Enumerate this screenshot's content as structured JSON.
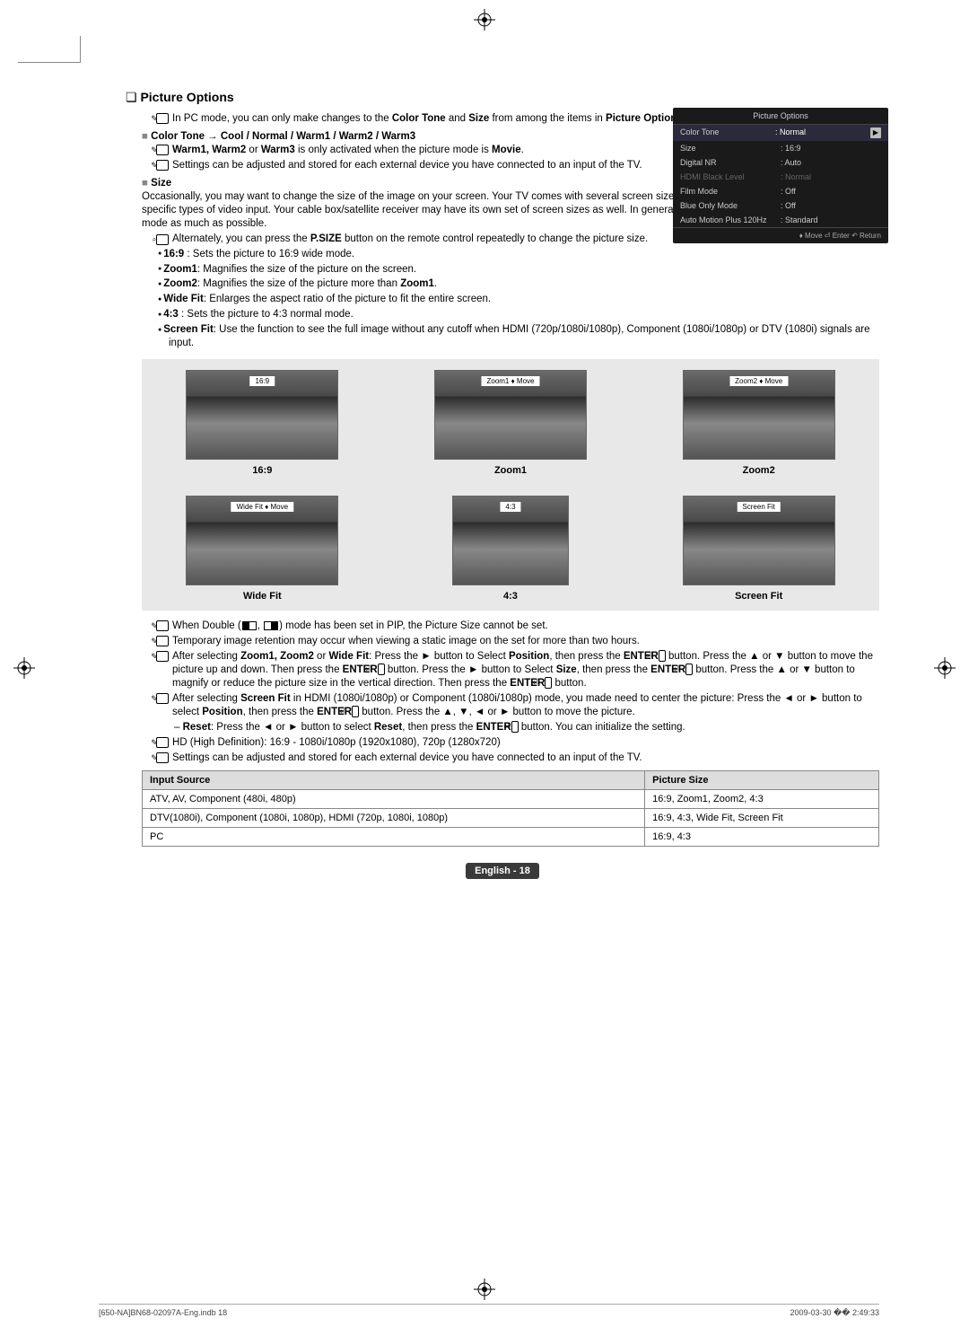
{
  "heading": "Picture Options",
  "intro_note": "In PC mode, you can only make changes to the ",
  "intro_bold1": "Color Tone",
  "intro_mid": " and ",
  "intro_bold2": "Size",
  "intro_end": " from among the items in ",
  "intro_bold3": "Picture Options",
  "intro_period": ".",
  "color_tone_line": "Color Tone → Cool / Normal / Warm1 / Warm2 / Warm3",
  "warm_note_a": "Warm1, Warm2",
  "warm_note_b": " or ",
  "warm_note_c": "Warm3",
  "warm_note_d": " is only activated when the picture mode is ",
  "warm_note_e": "Movie",
  "warm_note_f": ".",
  "settings_note": "Settings can be adjusted and stored for each external device you have connected to an input of the TV.",
  "size_label": "Size",
  "size_intro": "Occasionally, you may want to change the size of the image on your screen. Your TV comes with several screen size options, each designed to work best with specific types of video input. Your cable box/satellite receiver may have its own set of screen sizes as well. In general, though, you should view the TV in 16:9 mode as much as possible.",
  "psize_note_a": "Alternately, you can press the ",
  "psize_note_b": "P.SIZE",
  "psize_note_c": " button on the remote control repeatedly to change the picture size.",
  "bullets": {
    "a1": "16:9",
    "a2": " : Sets the picture to 16:9 wide mode.",
    "b1": "Zoom1",
    "b2": ": Magnifies the size of the picture on the screen.",
    "c1": "Zoom2",
    "c2": ": Magnifies the size of the picture more than ",
    "c3": "Zoom1",
    "c4": ".",
    "d1": "Wide Fit",
    "d2": ": Enlarges the aspect ratio of the picture to fit the entire screen.",
    "e1": "4:3",
    "e2": " : Sets the picture to 4:3 normal mode.",
    "f1": "Screen Fit",
    "f2": ": Use the function to see the full image without any cutoff when HDMI (720p/1080i/1080p), Component (1080i/1080p) or DTV (1080i) signals are input."
  },
  "thumbs": {
    "a": {
      "bar": "16:9",
      "caption": "16:9"
    },
    "b": {
      "bar": "Zoom1 ♦ Move",
      "caption": "Zoom1"
    },
    "c": {
      "bar": "Zoom2 ♦ Move",
      "caption": "Zoom2"
    },
    "d": {
      "bar": "Wide Fit ♦ Move",
      "caption": "Wide Fit"
    },
    "e": {
      "bar": "4:3",
      "caption": "4:3"
    },
    "f": {
      "bar": "Screen Fit",
      "caption": "Screen Fit"
    }
  },
  "after_notes": {
    "n1a": "When Double (",
    "n1b": ", ",
    "n1c": ") mode has been set in PIP, the Picture Size cannot be set.",
    "n2": "Temporary image retention may occur when viewing a static image on the set for more than two hours.",
    "n3a": "After selecting ",
    "n3b": "Zoom1, Zoom2",
    "n3c": " or ",
    "n3d": "Wide Fit",
    "n3e": ": Press the ► button to Select ",
    "n3f": "Position",
    "n3g": ", then press the ",
    "n3h": "ENTER",
    "n3i": " button. Press the ▲ or ▼ button to move the picture up and down. Then press the ",
    "n3j": "ENTER",
    "n3k": " button. Press the ► button to Select ",
    "n3l": "Size",
    "n3m": ", then press the ",
    "n3n": "ENTER",
    "n3o": " button. Press the ▲ or ▼ button to magnify or reduce the picture size in the vertical direction. Then press the ",
    "n3p": "ENTER",
    "n3q": " button.",
    "n4a": "After selecting ",
    "n4b": "Screen Fit",
    "n4c": " in HDMI (1080i/1080p) or Component (1080i/1080p) mode, you made need to center the picture: Press the ◄ or ► button to select ",
    "n4d": "Position",
    "n4e": ", then press the ",
    "n4f": "ENTER",
    "n4g": " button. Press the ▲, ▼, ◄ or ► button to move the picture.",
    "reset_a": "Reset",
    "reset_b": ": Press the ◄ or ► button to select ",
    "reset_c": "Reset",
    "reset_d": ", then press the ",
    "reset_e": "ENTER",
    "reset_f": " button. You can initialize the setting.",
    "n5": "HD (High Definition): 16:9 - 1080i/1080p (1920x1080), 720p (1280x720)",
    "n6": "Settings can be adjusted and stored for each external device you have connected to an input of the TV."
  },
  "table": {
    "h1": "Input Source",
    "h2": "Picture Size",
    "r1c1": "ATV, AV, Component (480i, 480p)",
    "r1c2": "16:9, Zoom1, Zoom2, 4:3",
    "r2c1": "DTV(1080i), Component (1080i, 1080p), HDMI (720p, 1080i, 1080p)",
    "r2c2": "16:9, 4:3, Wide Fit, Screen Fit",
    "r3c1": "PC",
    "r3c2": "16:9, 4:3"
  },
  "osd": {
    "title": "Picture Options",
    "rows": [
      {
        "label": "Color Tone",
        "value": ": Normal",
        "hl": true
      },
      {
        "label": "Size",
        "value": ": 16:9"
      },
      {
        "label": "Digital NR",
        "value": ": Auto"
      },
      {
        "label": "HDMI Black Level",
        "value": ": Normal",
        "dim": true
      },
      {
        "label": "Film Mode",
        "value": ": Off"
      },
      {
        "label": "Blue Only Mode",
        "value": ": Off"
      },
      {
        "label": "Auto Motion Plus 120Hz",
        "value": ": Standard"
      }
    ],
    "footer": "♦ Move   ⏎ Enter   ↶ Return"
  },
  "page_label": "English - 18",
  "footer_left": "[650-NA]BN68-02097A-Eng.indb   18",
  "footer_right": "2009-03-30   �� 2:49:33",
  "colors": {
    "thumb_bg": "#e8e8e8",
    "osd_bg": "#1a1a1a",
    "table_header_bg": "#ddd",
    "page_label_bg": "#3a3a3a"
  }
}
